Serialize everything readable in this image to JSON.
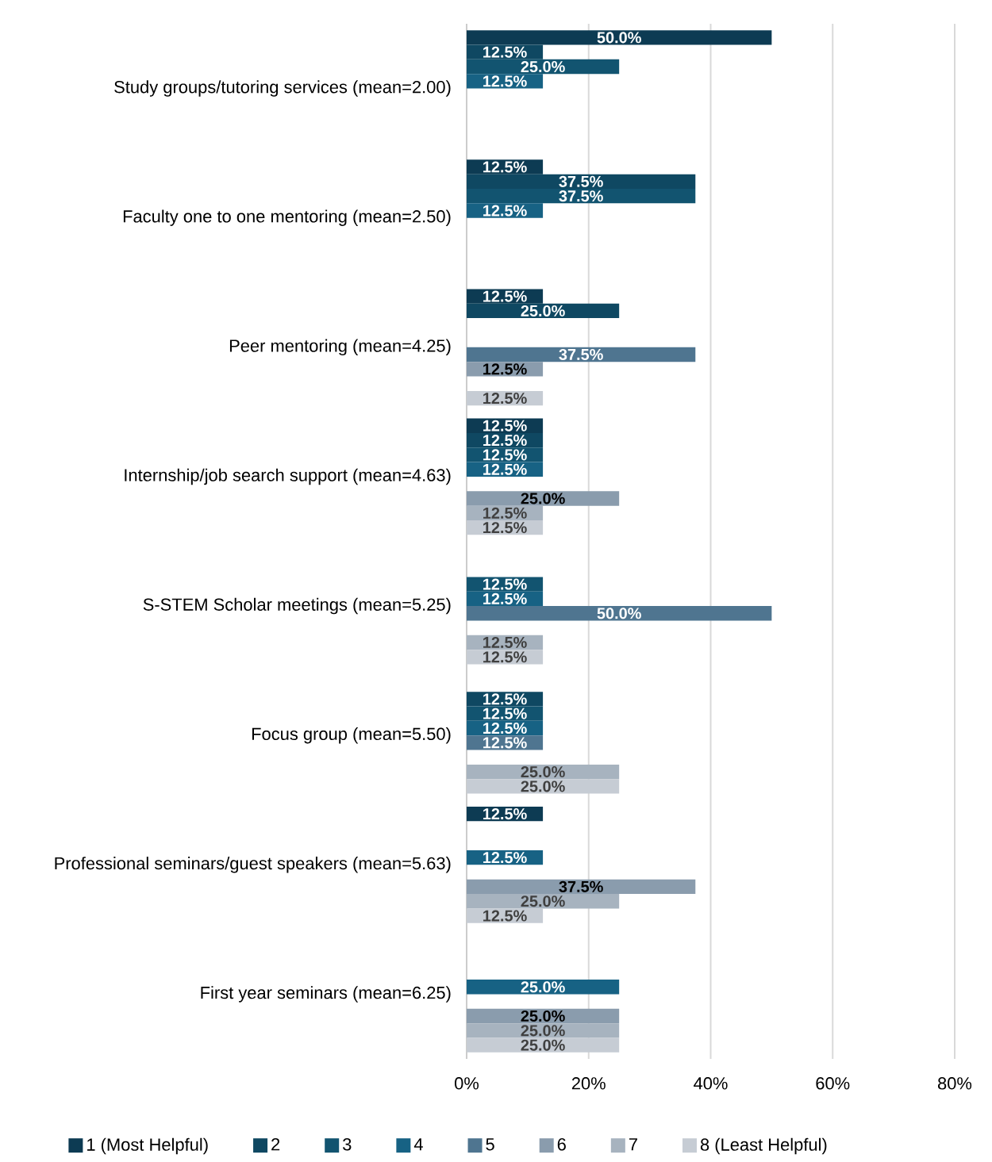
{
  "chart_data": {
    "type": "bar",
    "orientation": "horizontal",
    "categories": [
      "Study groups/tutoring services (mean=2.00)",
      "Faculty one to one mentoring (mean=2.50)",
      "Peer mentoring (mean=4.25)",
      "Internship/job search support (mean=4.63)",
      "S-STEM Scholar meetings (mean=5.25)",
      "Focus group (mean=5.50)",
      "Professional seminars/guest speakers (mean=5.63)",
      "First year seminars (mean=6.25)"
    ],
    "series": [
      {
        "name": "1 (Most Helpful)",
        "color": "#0d3b53",
        "values": [
          50,
          12.5,
          12.5,
          12.5,
          0,
          0,
          12.5,
          0
        ],
        "value_labels": [
          "50.0%",
          "12.5%",
          "12.5%",
          "12.5%",
          null,
          null,
          "12.5%",
          null
        ]
      },
      {
        "name": "2",
        "color": "#0f4862",
        "values": [
          12.5,
          37.5,
          25,
          12.5,
          0,
          12.5,
          0,
          0
        ],
        "value_labels": [
          "12.5%",
          "37.5%",
          "25.0%",
          "12.5%",
          null,
          "12.5%",
          null,
          null
        ]
      },
      {
        "name": "3",
        "color": "#125470",
        "values": [
          25,
          37.5,
          0,
          12.5,
          12.5,
          12.5,
          0,
          0
        ],
        "value_labels": [
          "25.0%",
          "37.5%",
          null,
          "12.5%",
          "12.5%",
          "12.5%",
          null,
          null
        ]
      },
      {
        "name": "4",
        "color": "#176284",
        "values": [
          12.5,
          12.5,
          0,
          12.5,
          12.5,
          12.5,
          12.5,
          25
        ],
        "value_labels": [
          "12.5%",
          "12.5%",
          null,
          "12.5%",
          "12.5%",
          "12.5%",
          "12.5%",
          "25.0%"
        ]
      },
      {
        "name": "5",
        "color": "#4f7590",
        "values": [
          0,
          0,
          37.5,
          0,
          50,
          12.5,
          0,
          0
        ],
        "value_labels": [
          null,
          null,
          "37.5%",
          null,
          "50.0%",
          "12.5%",
          null,
          null
        ]
      },
      {
        "name": "6",
        "color": "#8a9cad",
        "values": [
          0,
          0,
          12.5,
          25,
          0,
          0,
          37.5,
          25
        ],
        "value_labels": [
          null,
          null,
          "12.5%",
          "25.0%",
          null,
          null,
          "37.5%",
          "25.0%"
        ]
      },
      {
        "name": "7",
        "color": "#a7b3bf",
        "values": [
          0,
          0,
          0,
          12.5,
          12.5,
          25,
          25,
          25
        ],
        "value_labels": [
          null,
          null,
          null,
          "12.5%",
          "12.5%",
          "25.0%",
          "25.0%",
          "25.0%"
        ]
      },
      {
        "name": "8 (Least Helpful)",
        "color": "#c6ccd4",
        "values": [
          0,
          0,
          12.5,
          12.5,
          12.5,
          25,
          12.5,
          25
        ],
        "value_labels": [
          null,
          null,
          "12.5%",
          "12.5%",
          "12.5%",
          "25.0%",
          "12.5%",
          "25.0%"
        ]
      }
    ],
    "xlim": [
      0,
      80
    ],
    "xticks": [
      {
        "value": 0,
        "label": "0%"
      },
      {
        "value": 20,
        "label": "20%"
      },
      {
        "value": 40,
        "label": "40%"
      },
      {
        "value": 60,
        "label": "60%"
      },
      {
        "value": 80,
        "label": "80%"
      }
    ],
    "grid": "x",
    "legend": "bottom"
  }
}
